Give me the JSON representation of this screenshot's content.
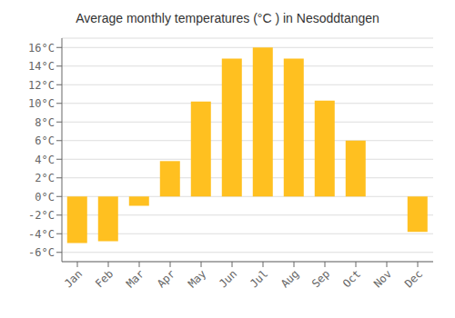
{
  "chart_data": {
    "type": "bar",
    "title": "Average monthly temperatures (°C ) in Nesoddtangen",
    "categories": [
      "Jan",
      "Feb",
      "Mar",
      "Apr",
      "May",
      "Jun",
      "Jul",
      "Aug",
      "Sep",
      "Oct",
      "Nov",
      "Dec"
    ],
    "values": [
      -5.0,
      -4.8,
      -1.0,
      3.8,
      10.2,
      14.8,
      16.0,
      14.8,
      10.3,
      6.0,
      0.0,
      -3.8
    ],
    "color": "#FFC020",
    "ylim": [
      -7,
      17
    ],
    "yticks": [
      {
        "value": -6,
        "label": "-6°C"
      },
      {
        "value": -4,
        "label": "-4°C"
      },
      {
        "value": -2,
        "label": "-2°C"
      },
      {
        "value": 0,
        "label": "0°C"
      },
      {
        "value": 2,
        "label": "2°C"
      },
      {
        "value": 4,
        "label": "4°C"
      },
      {
        "value": 6,
        "label": "6°C"
      },
      {
        "value": 8,
        "label": "8°C"
      },
      {
        "value": 10,
        "label": "10°C"
      },
      {
        "value": 12,
        "label": "12°C"
      },
      {
        "value": 14,
        "label": "14°C"
      },
      {
        "value": 16,
        "label": "16°C"
      }
    ],
    "grid": true
  }
}
